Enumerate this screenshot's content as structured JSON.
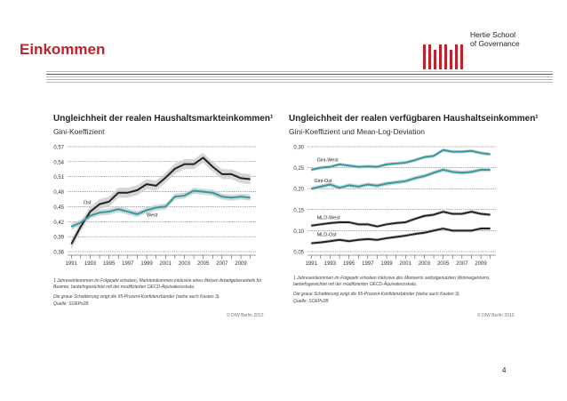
{
  "slide": {
    "title": "Einkommen",
    "logo_line1": "Hertie School",
    "logo_line2": "of Governance",
    "page_number": "4",
    "accent_color": "#c0212b"
  },
  "left": {
    "title": "Ungleichheit der realen Haushaltsmarkteinkommen¹",
    "subtitle": "Gini-Koeffizient",
    "footnote1": "1 Jahreseinkommen im Folgejahr erhoben, Markteinkommen inklusive eines fiktiven Arbeitgeberanteils für",
    "footnote2": "Beamte, bedarfsgewichtet mit der modifizierten OECD-Äquivalenzskala.",
    "footnote3": "Die graue Schattierung zeigt die 95-Prozent-Konfidenzbänder (siehe auch Kasten 3).",
    "source": "Quelle: SOEPv28.",
    "copyright": "© DIW Berlin 2012"
  },
  "right": {
    "title": "Ungleichheit der realen verfügbaren Haushaltseinkommen¹",
    "subtitle": "Gini-Koeffizient und Mean-Log-Deviation",
    "footnote1": "1 Jahreseinkommen im Folgejahr erhoben inklusive des Mietwerts selbstgenutzten Wohneigentums,",
    "footnote2": "bedarfsgewichtet mit der modifizierten OECD-Äquivalenzskala.",
    "footnote3": "Die graue Schattierung zeigt die 95-Prozent-Konfidenzbänder (siehe auch Kasten 3).",
    "source": "Quelle: SOEPv28.",
    "copyright": "© DIW Berlin 2012"
  },
  "chart_data": [
    {
      "type": "line",
      "title": "Ungleichheit der realen Haushaltsmarkteinkommen¹",
      "subtitle": "Gini-Koeffizient",
      "x": [
        1991,
        1992,
        1993,
        1994,
        1995,
        1996,
        1997,
        1998,
        1999,
        2000,
        2001,
        2002,
        2003,
        2004,
        2005,
        2006,
        2007,
        2008,
        2009,
        2010
      ],
      "x_ticks": [
        1991,
        1993,
        1995,
        1997,
        1999,
        2001,
        2003,
        2005,
        2007,
        2009
      ],
      "ylim": [
        0.36,
        0.57
      ],
      "y_ticks": [
        0.36,
        0.39,
        0.42,
        0.45,
        0.48,
        0.51,
        0.54,
        0.57
      ],
      "y_tick_labels": [
        "0,36",
        "0,39",
        "0,42",
        "0,45",
        "0,48",
        "0,51",
        "0,54",
        "0,57"
      ],
      "grid": "horizontal",
      "series": [
        {
          "name": "Ost",
          "color": "#222222",
          "values": [
            0.375,
            0.41,
            0.44,
            0.455,
            0.46,
            0.478,
            0.478,
            0.483,
            0.495,
            0.492,
            0.508,
            0.526,
            0.535,
            0.535,
            0.548,
            0.53,
            0.515,
            0.515,
            0.507,
            0.505
          ],
          "band": 0.01
        },
        {
          "name": "West",
          "color": "#2e9ba3",
          "values": [
            0.41,
            0.418,
            0.432,
            0.438,
            0.44,
            0.445,
            0.44,
            0.435,
            0.443,
            0.448,
            0.45,
            0.47,
            0.472,
            0.482,
            0.48,
            0.478,
            0.47,
            0.468,
            0.47,
            0.468
          ],
          "band": 0.006
        }
      ],
      "labels": [
        {
          "text": "Ost",
          "x": 1992.3,
          "y": 0.455
        },
        {
          "text": "West",
          "x": 1999.0,
          "y": 0.43
        }
      ]
    },
    {
      "type": "line",
      "title": "Ungleichheit der realen verfügbaren Haushaltseinkommen¹",
      "subtitle": "Gini-Koeffizient und Mean-Log-Deviation",
      "x": [
        1991,
        1992,
        1993,
        1994,
        1995,
        1996,
        1997,
        1998,
        1999,
        2000,
        2001,
        2002,
        2003,
        2004,
        2005,
        2006,
        2007,
        2008,
        2009,
        2010
      ],
      "x_ticks": [
        1991,
        1993,
        1995,
        1997,
        1999,
        2001,
        2003,
        2005,
        2007,
        2009
      ],
      "ylim": [
        0.05,
        0.3
      ],
      "y_ticks": [
        0.05,
        0.1,
        0.15,
        0.2,
        0.25,
        0.3
      ],
      "y_tick_labels": [
        "0,05",
        "0,10",
        "0,15",
        "0,20",
        "0,25",
        "0,30"
      ],
      "grid": "horizontal",
      "series": [
        {
          "name": "Gini-West",
          "color": "#2e9ba3",
          "values": [
            0.245,
            0.25,
            0.252,
            0.258,
            0.255,
            0.252,
            0.253,
            0.252,
            0.258,
            0.26,
            0.262,
            0.268,
            0.275,
            0.278,
            0.292,
            0.288,
            0.288,
            0.29,
            0.285,
            0.282
          ],
          "band": 0.004
        },
        {
          "name": "Gini-Ost",
          "color": "#2e9ba3",
          "values": [
            0.2,
            0.205,
            0.21,
            0.202,
            0.208,
            0.205,
            0.21,
            0.207,
            0.212,
            0.215,
            0.218,
            0.225,
            0.23,
            0.238,
            0.245,
            0.24,
            0.238,
            0.24,
            0.245,
            0.245
          ],
          "band": 0.005
        },
        {
          "name": "MLD-West",
          "color": "#222222",
          "values": [
            0.112,
            0.115,
            0.118,
            0.12,
            0.12,
            0.115,
            0.115,
            0.11,
            0.115,
            0.118,
            0.12,
            0.128,
            0.135,
            0.138,
            0.145,
            0.14,
            0.14,
            0.145,
            0.14,
            0.138
          ],
          "band": 0.004
        },
        {
          "name": "MLD-Ost",
          "color": "#222222",
          "values": [
            0.07,
            0.072,
            0.075,
            0.078,
            0.075,
            0.078,
            0.08,
            0.078,
            0.082,
            0.085,
            0.088,
            0.092,
            0.095,
            0.1,
            0.105,
            0.1,
            0.1,
            0.1,
            0.105,
            0.105
          ],
          "band": 0.004
        }
      ],
      "labels": [
        {
          "text": "Gini-West",
          "x": 1991.6,
          "y": 0.265
        },
        {
          "text": "Gini-Ost",
          "x": 1991.3,
          "y": 0.215
        },
        {
          "text": "MLD-West",
          "x": 1991.6,
          "y": 0.127
        },
        {
          "text": "MLD-Ost",
          "x": 1991.6,
          "y": 0.087
        }
      ]
    }
  ]
}
